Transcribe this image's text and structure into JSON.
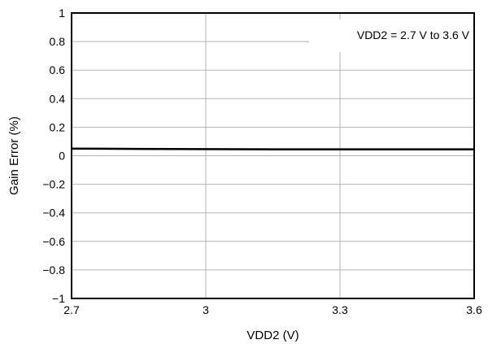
{
  "chart_data": {
    "type": "line",
    "xlabel": "VDD2 (V)",
    "ylabel": "Gain Error (%)",
    "xlim": [
      2.7,
      3.6
    ],
    "ylim": [
      -1,
      1
    ],
    "x_ticks": [
      2.7,
      3,
      3.3,
      3.6
    ],
    "x_tick_labels": [
      "2.7",
      "3",
      "3.3",
      "3.6"
    ],
    "y_ticks": [
      1,
      0.8,
      0.6,
      0.4,
      0.2,
      0,
      -0.2,
      -0.4,
      -0.6,
      -0.8,
      -1
    ],
    "y_tick_labels": [
      "1",
      "0.8",
      "0.6",
      "0.4",
      "0.2",
      "0",
      "−0.2",
      "−0.4",
      "−0.6",
      "−0.8",
      "−1"
    ],
    "grid": true,
    "legend_position": "top-right",
    "annotation": "VDD2 = 2.7 V to 3.6 V",
    "series": [
      {
        "x": [
          2.7,
          2.85,
          3.0,
          3.15,
          3.3,
          3.45,
          3.6
        ],
        "y": [
          0.05,
          0.048,
          0.046,
          0.045,
          0.045,
          0.045,
          0.045
        ]
      }
    ]
  }
}
